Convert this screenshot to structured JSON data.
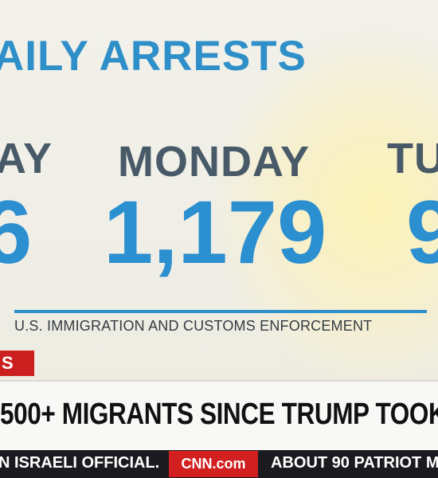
{
  "graphic": {
    "title": "AILY ARRESTS",
    "days": [
      {
        "day": "AY",
        "count": "6"
      },
      {
        "day": "MONDAY",
        "count": "1,179"
      },
      {
        "day": "TU",
        "count": "9"
      }
    ],
    "source": "U.S. IMMIGRATION AND CUSTOMS ENFORCEMENT"
  },
  "lower_third": {
    "tag": "S",
    "headline": "500+ MIGRANTS SINCE TRUMP TOOK O"
  },
  "ticker": {
    "left_text": "N ISRAELI OFFICIAL.",
    "logo": "CNN.com",
    "right_text": "ABOUT 90 PATRIOT M"
  },
  "colors": {
    "accent_blue": "#2b8fd0",
    "day_gray": "#485a67",
    "breaking_red": "#cc1f1f",
    "ticker_bg": "#1b1b1f"
  }
}
